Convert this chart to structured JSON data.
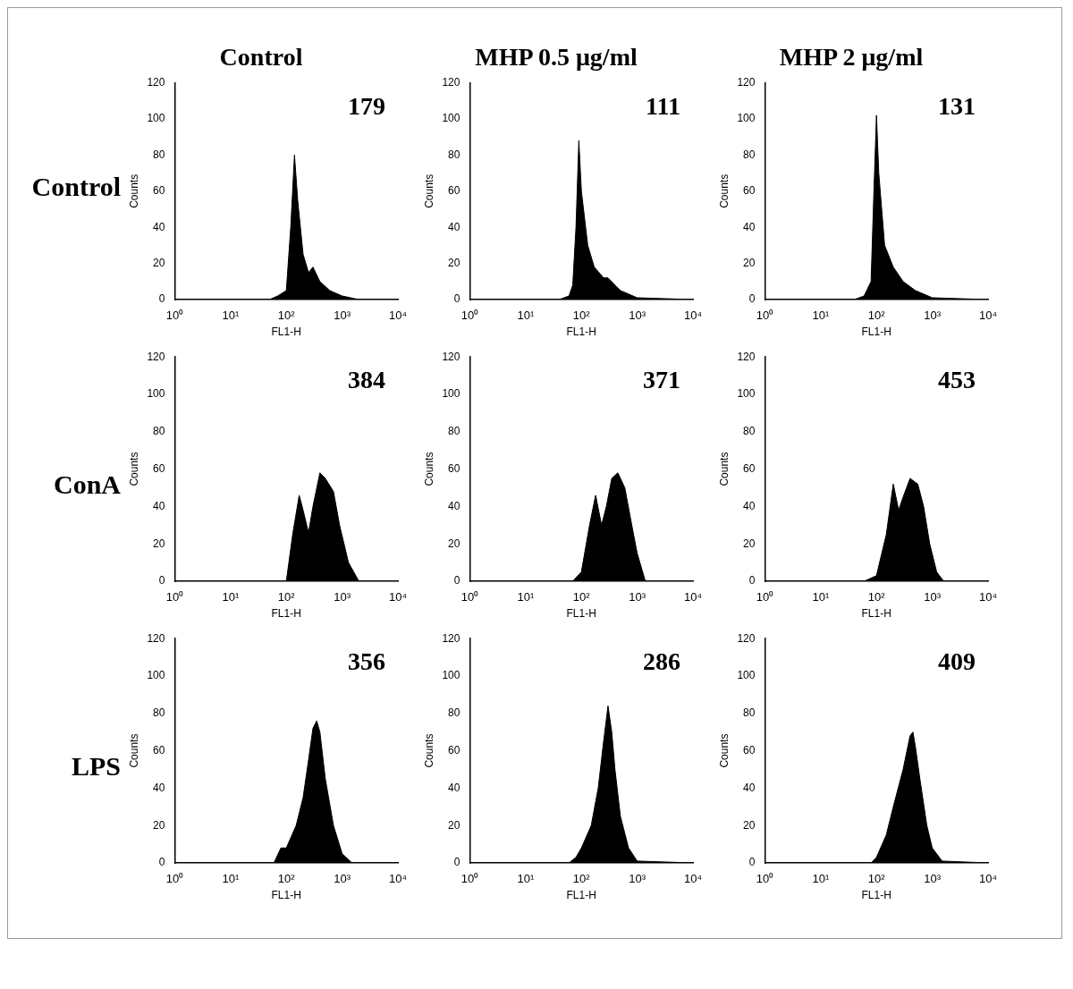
{
  "chart_data": [
    {
      "type": "area",
      "title": "Control",
      "ylabel": "Counts",
      "xlabel": "FL1-H",
      "annotations": [
        "Control",
        "179"
      ],
      "log": "x",
      "color": "#000000",
      "x": [
        1,
        50,
        70,
        100,
        120,
        140,
        160,
        200,
        250,
        300,
        400,
        600,
        1000,
        2000,
        10000
      ],
      "values": [
        0,
        0,
        2,
        5,
        40,
        80,
        55,
        25,
        15,
        18,
        10,
        5,
        2,
        0,
        0
      ],
      "xlim": [
        1,
        10000
      ],
      "xticks": [
        {
          "value": 1,
          "label": "10⁰"
        },
        {
          "value": 10,
          "label": "10¹"
        },
        {
          "value": 100,
          "label": "10²"
        },
        {
          "value": 1000,
          "label": "10³"
        },
        {
          "value": 10000,
          "label": "10⁴"
        }
      ],
      "ylim": [
        0,
        120
      ],
      "yticks": [
        0,
        20,
        40,
        60,
        80,
        100,
        120
      ]
    },
    {
      "type": "area",
      "title": "MHP 0.5 μg/ml",
      "ylabel": "Counts",
      "xlabel": "FL1-H",
      "annotations": [
        "111"
      ],
      "log": "x",
      "color": "#000000",
      "x": [
        1,
        40,
        60,
        70,
        80,
        90,
        100,
        130,
        170,
        250,
        300,
        500,
        1000,
        10000
      ],
      "values": [
        0,
        0,
        2,
        8,
        40,
        88,
        60,
        30,
        18,
        12,
        12,
        5,
        1,
        0
      ],
      "xlim": [
        1,
        10000
      ],
      "xticks": [
        {
          "value": 1,
          "label": "10⁰"
        },
        {
          "value": 10,
          "label": "10¹"
        },
        {
          "value": 100,
          "label": "10²"
        },
        {
          "value": 1000,
          "label": "10³"
        },
        {
          "value": 10000,
          "label": "10⁴"
        }
      ],
      "ylim": [
        0,
        120
      ],
      "yticks": [
        0,
        20,
        40,
        60,
        80,
        100,
        120
      ]
    },
    {
      "type": "area",
      "title": "MHP 2 μg/ml",
      "ylabel": "Counts",
      "xlabel": "FL1-H",
      "annotations": [
        "131"
      ],
      "log": "x",
      "color": "#000000",
      "x": [
        1,
        40,
        60,
        80,
        90,
        100,
        110,
        140,
        200,
        300,
        500,
        1000,
        10000
      ],
      "values": [
        0,
        0,
        2,
        10,
        60,
        102,
        70,
        30,
        18,
        10,
        5,
        1,
        0
      ],
      "xlim": [
        1,
        10000
      ],
      "xticks": [
        {
          "value": 1,
          "label": "10⁰"
        },
        {
          "value": 10,
          "label": "10¹"
        },
        {
          "value": 100,
          "label": "10²"
        },
        {
          "value": 1000,
          "label": "10³"
        },
        {
          "value": 10000,
          "label": "10⁴"
        }
      ],
      "ylim": [
        0,
        120
      ],
      "yticks": [
        0,
        20,
        40,
        60,
        80,
        100,
        120
      ]
    },
    {
      "type": "area",
      "ylabel": "Counts",
      "xlabel": "FL1-H",
      "annotations": [
        "ConA",
        "384"
      ],
      "log": "x",
      "color": "#000000",
      "x": [
        1,
        100,
        130,
        170,
        200,
        250,
        300,
        400,
        500,
        700,
        900,
        1300,
        2000,
        10000
      ],
      "values": [
        0,
        0,
        25,
        46,
        38,
        26,
        40,
        58,
        55,
        48,
        30,
        10,
        0,
        0
      ],
      "xlim": [
        1,
        10000
      ],
      "xticks": [
        {
          "value": 1,
          "label": "10⁰"
        },
        {
          "value": 10,
          "label": "10¹"
        },
        {
          "value": 100,
          "label": "10²"
        },
        {
          "value": 1000,
          "label": "10³"
        },
        {
          "value": 10000,
          "label": "10⁴"
        }
      ],
      "ylim": [
        0,
        120
      ],
      "yticks": [
        0,
        20,
        40,
        60,
        80,
        100,
        120
      ]
    },
    {
      "type": "area",
      "ylabel": "Counts",
      "xlabel": "FL1-H",
      "annotations": [
        "371"
      ],
      "log": "x",
      "color": "#000000",
      "x": [
        1,
        70,
        100,
        140,
        180,
        230,
        280,
        350,
        450,
        600,
        800,
        1000,
        1400,
        10000
      ],
      "values": [
        0,
        0,
        5,
        30,
        46,
        30,
        40,
        55,
        58,
        50,
        30,
        15,
        0,
        0
      ],
      "xlim": [
        1,
        10000
      ],
      "xticks": [
        {
          "value": 1,
          "label": "10⁰"
        },
        {
          "value": 10,
          "label": "10¹"
        },
        {
          "value": 100,
          "label": "10²"
        },
        {
          "value": 1000,
          "label": "10³"
        },
        {
          "value": 10000,
          "label": "10⁴"
        }
      ],
      "ylim": [
        0,
        120
      ],
      "yticks": [
        0,
        20,
        40,
        60,
        80,
        100,
        120
      ]
    },
    {
      "type": "area",
      "ylabel": "Counts",
      "xlabel": "FL1-H",
      "annotations": [
        "453"
      ],
      "log": "x",
      "color": "#000000",
      "x": [
        1,
        60,
        100,
        150,
        200,
        250,
        300,
        400,
        550,
        700,
        900,
        1200,
        1600,
        10000
      ],
      "values": [
        0,
        0,
        3,
        25,
        52,
        38,
        45,
        55,
        52,
        40,
        20,
        5,
        0,
        0
      ],
      "xlim": [
        1,
        10000
      ],
      "xticks": [
        {
          "value": 1,
          "label": "10⁰"
        },
        {
          "value": 10,
          "label": "10¹"
        },
        {
          "value": 100,
          "label": "10²"
        },
        {
          "value": 1000,
          "label": "10³"
        },
        {
          "value": 10000,
          "label": "10⁴"
        }
      ],
      "ylim": [
        0,
        120
      ],
      "yticks": [
        0,
        20,
        40,
        60,
        80,
        100,
        120
      ]
    },
    {
      "type": "area",
      "ylabel": "Counts",
      "xlabel": "FL1-H",
      "annotations": [
        "LPS",
        "356"
      ],
      "log": "x",
      "color": "#000000",
      "x": [
        1,
        60,
        80,
        100,
        150,
        200,
        250,
        300,
        350,
        400,
        500,
        700,
        1000,
        1500,
        10000
      ],
      "values": [
        0,
        0,
        8,
        8,
        20,
        35,
        55,
        72,
        76,
        70,
        45,
        20,
        5,
        0,
        0
      ],
      "xlim": [
        1,
        10000
      ],
      "xticks": [
        {
          "value": 1,
          "label": "10⁰"
        },
        {
          "value": 10,
          "label": "10¹"
        },
        {
          "value": 100,
          "label": "10²"
        },
        {
          "value": 1000,
          "label": "10³"
        },
        {
          "value": 10000,
          "label": "10⁴"
        }
      ],
      "ylim": [
        0,
        120
      ],
      "yticks": [
        0,
        20,
        40,
        60,
        80,
        100,
        120
      ]
    },
    {
      "type": "area",
      "ylabel": "Counts",
      "xlabel": "FL1-H",
      "annotations": [
        "286"
      ],
      "log": "x",
      "color": "#000000",
      "x": [
        1,
        60,
        80,
        100,
        150,
        200,
        250,
        300,
        350,
        400,
        500,
        700,
        1000,
        10000
      ],
      "values": [
        0,
        0,
        3,
        8,
        20,
        40,
        65,
        84,
        70,
        50,
        25,
        8,
        1,
        0
      ],
      "xlim": [
        1,
        10000
      ],
      "xticks": [
        {
          "value": 1,
          "label": "10⁰"
        },
        {
          "value": 10,
          "label": "10¹"
        },
        {
          "value": 100,
          "label": "10²"
        },
        {
          "value": 1000,
          "label": "10³"
        },
        {
          "value": 10000,
          "label": "10⁴"
        }
      ],
      "ylim": [
        0,
        120
      ],
      "yticks": [
        0,
        20,
        40,
        60,
        80,
        100,
        120
      ]
    },
    {
      "type": "area",
      "ylabel": "Counts",
      "xlabel": "FL1-H",
      "annotations": [
        "409"
      ],
      "log": "x",
      "color": "#000000",
      "x": [
        1,
        80,
        100,
        150,
        200,
        300,
        400,
        450,
        500,
        600,
        800,
        1000,
        1500,
        10000
      ],
      "values": [
        0,
        0,
        3,
        15,
        30,
        50,
        68,
        70,
        62,
        45,
        20,
        8,
        1,
        0
      ],
      "xlim": [
        1,
        10000
      ],
      "xticks": [
        {
          "value": 1,
          "label": "10⁰"
        },
        {
          "value": 10,
          "label": "10¹"
        },
        {
          "value": 100,
          "label": "10²"
        },
        {
          "value": 1000,
          "label": "10³"
        },
        {
          "value": 10000,
          "label": "10⁴"
        }
      ],
      "ylim": [
        0,
        120
      ],
      "yticks": [
        0,
        20,
        40,
        60,
        80,
        100,
        120
      ]
    }
  ]
}
